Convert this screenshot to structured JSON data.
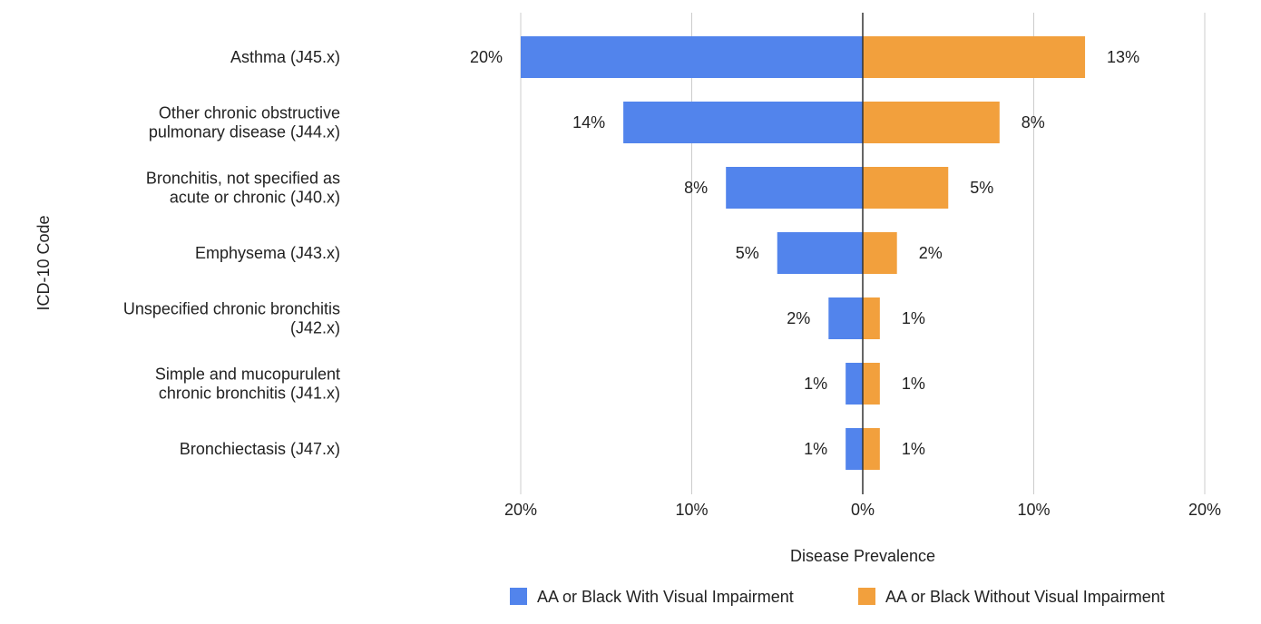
{
  "chart_data": {
    "type": "bar",
    "orientation": "horizontal-diverging",
    "xlabel": "Disease Prevalence",
    "ylabel": "ICD-10 Code",
    "xlim": [
      -20,
      20
    ],
    "x_ticks": [
      "20%",
      "10%",
      "0%",
      "10%",
      "20%"
    ],
    "grid": true,
    "legend_position": "bottom-right",
    "categories": [
      [
        "Asthma (J45.x)"
      ],
      [
        "Other chronic obstructive",
        "pulmonary disease (J44.x)"
      ],
      [
        "Bronchitis, not specified as",
        "acute or chronic (J40.x)"
      ],
      [
        "Emphysema (J43.x)"
      ],
      [
        "Unspecified chronic bronchitis",
        "(J42.x)"
      ],
      [
        "Simple and mucopurulent",
        "chronic bronchitis (J41.x)"
      ],
      [
        "Bronchiectasis (J47.x)"
      ]
    ],
    "series": [
      {
        "name": "AA or Black With Visual Impairment",
        "color": "#5284EC",
        "side": "left",
        "values": [
          20,
          14,
          8,
          5,
          2,
          1,
          1
        ],
        "labels": [
          "20%",
          "14%",
          "8%",
          "5%",
          "2%",
          "1%",
          "1%"
        ]
      },
      {
        "name": "AA or Black Without Visual Impairment",
        "color": "#F2A03D",
        "side": "right",
        "values": [
          13,
          8,
          5,
          2,
          1,
          1,
          1
        ],
        "labels": [
          "13%",
          "8%",
          "5%",
          "2%",
          "1%",
          "1%",
          "1%"
        ]
      }
    ]
  }
}
